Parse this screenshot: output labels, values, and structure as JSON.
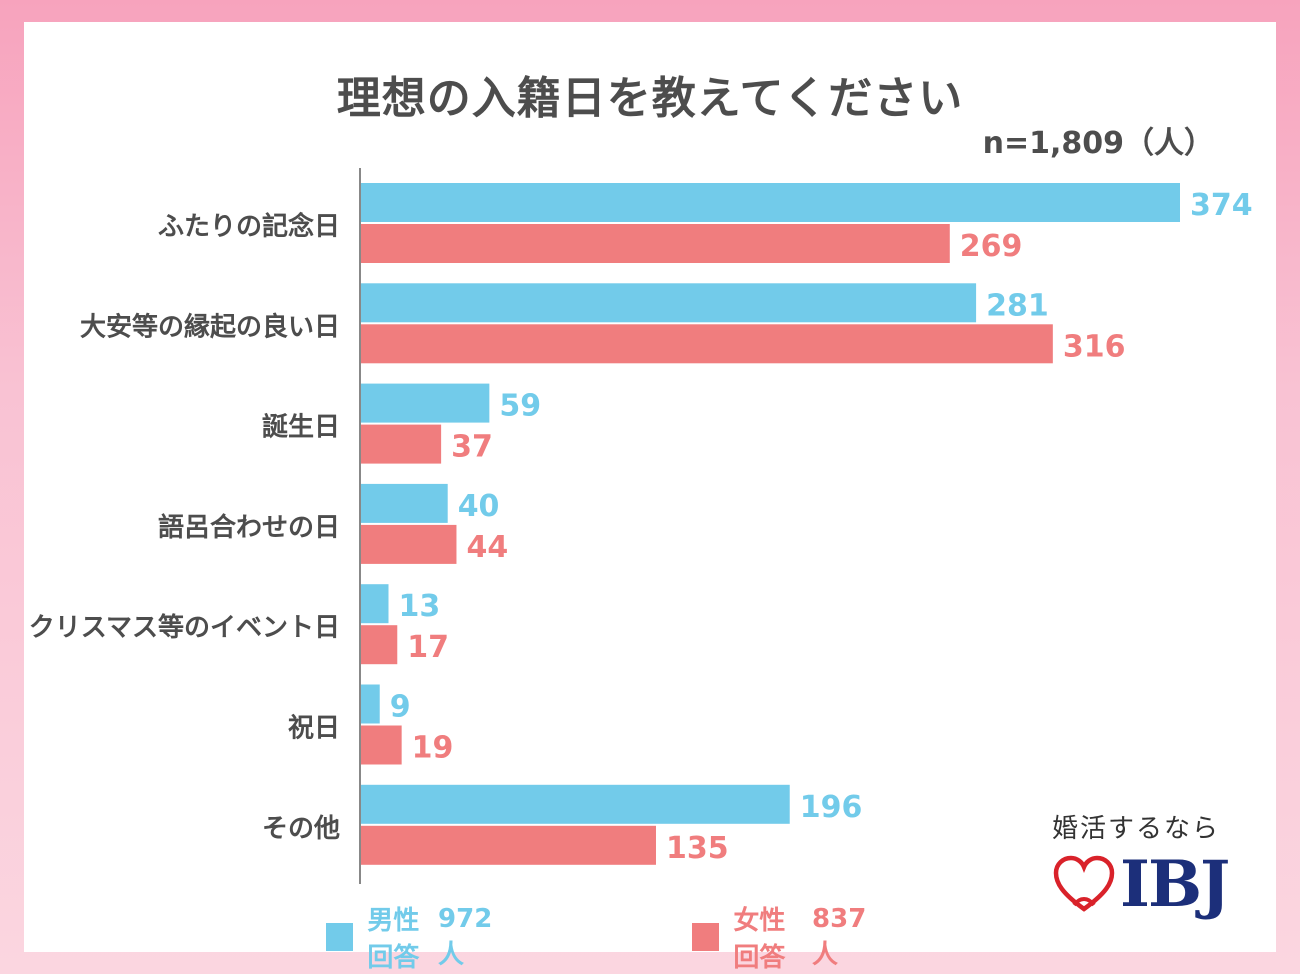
{
  "title": "理想の入籍日を教えてください",
  "sample_size": "n=1,809（人）",
  "colors": {
    "male": "#72cbea",
    "female": "#f07d7e",
    "axis": "#888888",
    "text": "#4d4d4d",
    "brand": "#1c2f7a",
    "heart": "#d9222a"
  },
  "chart_data": {
    "type": "bar",
    "orientation": "horizontal",
    "categories": [
      "ふたりの記念日",
      "大安等の縁起の良い日",
      "誕生日",
      "語呂合わせの日",
      "クリスマス等のイベント日",
      "祝日",
      "その他"
    ],
    "series": [
      {
        "name": "男性回答",
        "values": [
          374,
          281,
          59,
          40,
          13,
          9,
          196
        ]
      },
      {
        "name": "女性回答",
        "values": [
          269,
          316,
          37,
          44,
          17,
          19,
          135
        ]
      }
    ],
    "xlim": [
      0,
      374
    ],
    "grid": false,
    "legend_position": "bottom"
  },
  "legend": [
    {
      "label": "男性回答",
      "count": "972人"
    },
    {
      "label": "女性回答",
      "count": "837人"
    }
  ],
  "brand": {
    "tagline": "婚活するなら",
    "name": "IBJ",
    "icon": "heart-outline-icon"
  }
}
